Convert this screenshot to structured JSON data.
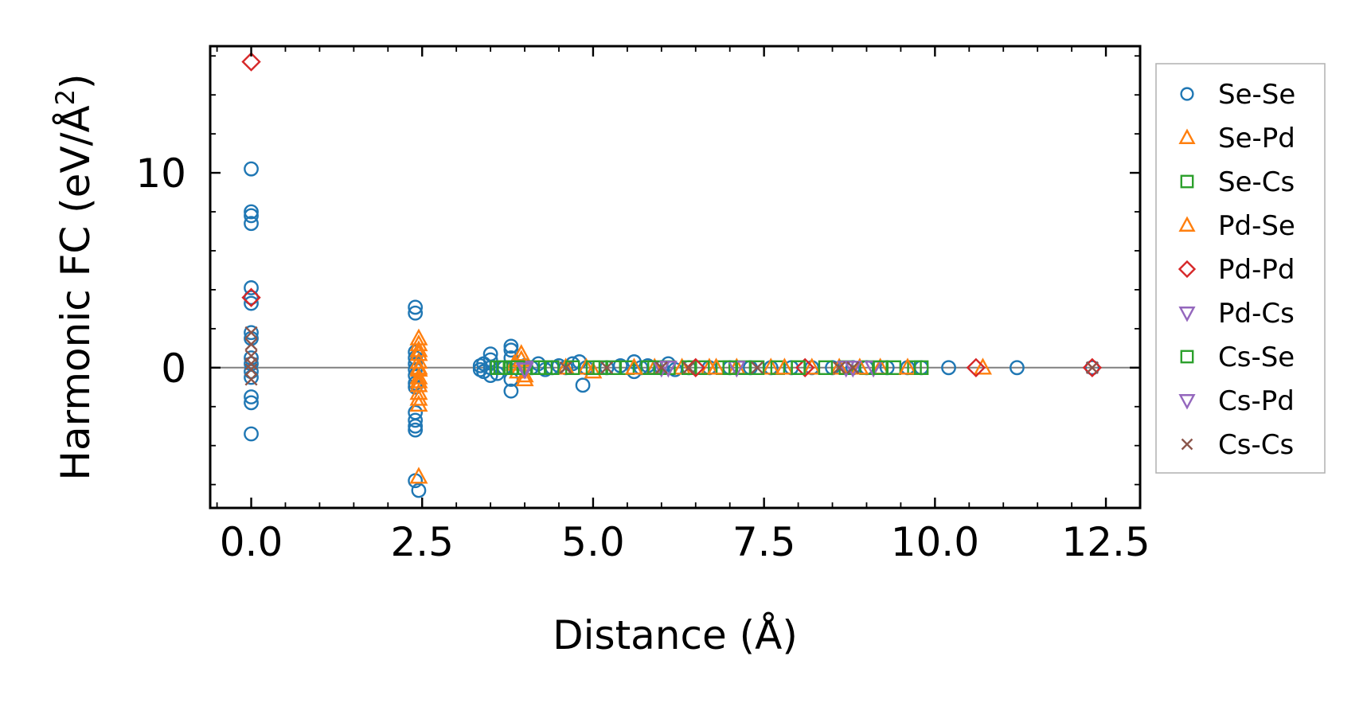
{
  "chart_data": {
    "type": "scatter",
    "xlabel": "Distance (Å)",
    "ylabel_main": "Harmonic FC (eV/Å",
    "ylabel_sup": "2",
    "ylabel_close": ")",
    "xlim": [
      -0.6,
      13.0
    ],
    "ylim": [
      -7.2,
      16.5
    ],
    "xticks": [
      {
        "v": 0.0,
        "label": "0.0"
      },
      {
        "v": 2.5,
        "label": "2.5"
      },
      {
        "v": 5.0,
        "label": "5.0"
      },
      {
        "v": 7.5,
        "label": "7.5"
      },
      {
        "v": 10.0,
        "label": "10.0"
      },
      {
        "v": 12.5,
        "label": "12.5"
      }
    ],
    "yticks": [
      {
        "v": 0,
        "label": "0"
      },
      {
        "v": 10,
        "label": "10"
      }
    ],
    "x_minor_step": 0.5,
    "y_minor_step": 2,
    "zero_line": true,
    "grid": false,
    "legend_position": "right, outside plot",
    "series": [
      {
        "name": "Se-Se",
        "marker": "circle",
        "color": "#1f77b4",
        "points": [
          [
            0,
            10.2
          ],
          [
            0,
            8.0
          ],
          [
            0,
            7.8
          ],
          [
            0,
            7.4
          ],
          [
            0,
            4.1
          ],
          [
            0,
            3.6
          ],
          [
            0,
            3.3
          ],
          [
            0,
            1.8
          ],
          [
            0,
            1.5
          ],
          [
            0,
            0.5
          ],
          [
            0,
            0.2
          ],
          [
            0,
            -0.2
          ],
          [
            0,
            -0.5
          ],
          [
            0,
            -1.5
          ],
          [
            0,
            -1.8
          ],
          [
            0,
            -3.4
          ],
          [
            2.4,
            3.1
          ],
          [
            2.4,
            2.8
          ],
          [
            2.4,
            0.8
          ],
          [
            2.4,
            0.5
          ],
          [
            2.4,
            0.2
          ],
          [
            2.4,
            -0.1
          ],
          [
            2.4,
            -0.4
          ],
          [
            2.4,
            -0.8
          ],
          [
            2.4,
            -1.0
          ],
          [
            2.4,
            -2.3
          ],
          [
            2.4,
            -2.7
          ],
          [
            2.4,
            -3.0
          ],
          [
            2.4,
            -3.2
          ],
          [
            2.4,
            -5.8
          ],
          [
            2.45,
            -6.3
          ],
          [
            3.35,
            0.1
          ],
          [
            3.35,
            -0.1
          ],
          [
            3.4,
            0.2
          ],
          [
            3.4,
            -0.2
          ],
          [
            3.5,
            0.0
          ],
          [
            3.5,
            0.4
          ],
          [
            3.5,
            -0.4
          ],
          [
            3.5,
            0.7
          ],
          [
            3.6,
            -0.3
          ],
          [
            3.7,
            0.0
          ],
          [
            3.8,
            0.9
          ],
          [
            3.8,
            1.1
          ],
          [
            3.8,
            0.5
          ],
          [
            3.8,
            -0.6
          ],
          [
            3.8,
            -1.2
          ],
          [
            4.0,
            0.1
          ],
          [
            4.1,
            0.0
          ],
          [
            4.2,
            0.2
          ],
          [
            4.3,
            -0.1
          ],
          [
            4.4,
            0.0
          ],
          [
            4.5,
            0.1
          ],
          [
            4.6,
            0.0
          ],
          [
            4.7,
            0.2
          ],
          [
            4.8,
            0.3
          ],
          [
            4.85,
            -0.9
          ],
          [
            4.9,
            0.0
          ],
          [
            5.2,
            0.0
          ],
          [
            5.4,
            0.1
          ],
          [
            5.6,
            0.3
          ],
          [
            5.6,
            -0.2
          ],
          [
            5.7,
            0.0
          ],
          [
            5.8,
            0.1
          ],
          [
            6.0,
            0.0
          ],
          [
            6.1,
            0.2
          ],
          [
            6.2,
            -0.1
          ],
          [
            6.4,
            0.0
          ],
          [
            6.7,
            0.0
          ],
          [
            7.0,
            0.0
          ],
          [
            7.3,
            0.0
          ],
          [
            7.6,
            0.0
          ],
          [
            7.9,
            0.0
          ],
          [
            8.2,
            0.0
          ],
          [
            8.5,
            0.0
          ],
          [
            8.8,
            0.0
          ],
          [
            9.0,
            0.0
          ],
          [
            9.3,
            0.0
          ],
          [
            9.6,
            0.0
          ],
          [
            9.8,
            0.0
          ],
          [
            10.2,
            0.0
          ],
          [
            11.2,
            0.0
          ],
          [
            12.3,
            0.0
          ]
        ]
      },
      {
        "name": "Se-Pd",
        "marker": "triangle-up",
        "color": "#ff7f0e",
        "points": [
          [
            2.45,
            1.5
          ],
          [
            2.45,
            1.2
          ],
          [
            2.45,
            0.7
          ],
          [
            2.45,
            0.3
          ],
          [
            2.45,
            -0.1
          ],
          [
            2.45,
            -0.5
          ],
          [
            2.45,
            -0.9
          ],
          [
            2.45,
            -1.3
          ],
          [
            2.45,
            -1.6
          ],
          [
            2.45,
            -1.9
          ],
          [
            2.45,
            -5.6
          ],
          [
            3.85,
            0.2
          ],
          [
            3.9,
            -0.2
          ],
          [
            3.95,
            0.7
          ],
          [
            4.0,
            -0.6
          ],
          [
            4.6,
            0.0
          ],
          [
            4.9,
            0.0
          ],
          [
            5.0,
            -0.2
          ],
          [
            5.9,
            0.0
          ],
          [
            6.3,
            0.0
          ],
          [
            6.7,
            0.0
          ],
          [
            7.1,
            0.0
          ],
          [
            7.6,
            0.0
          ],
          [
            8.2,
            0.0
          ],
          [
            8.6,
            0.0
          ],
          [
            9.2,
            0.0
          ],
          [
            10.7,
            0.0
          ]
        ]
      },
      {
        "name": "Se-Cs",
        "marker": "square",
        "color": "#2ca02c",
        "points": [
          [
            3.6,
            0.0
          ],
          [
            3.7,
            0.0
          ],
          [
            3.8,
            0.0
          ],
          [
            3.9,
            0.0
          ],
          [
            4.0,
            0.0
          ],
          [
            4.2,
            0.0
          ],
          [
            4.4,
            0.0
          ],
          [
            4.7,
            0.0
          ],
          [
            5.0,
            0.0
          ],
          [
            5.3,
            0.0
          ],
          [
            5.5,
            0.0
          ],
          [
            5.8,
            0.0
          ],
          [
            6.1,
            0.0
          ],
          [
            6.4,
            0.0
          ],
          [
            6.6,
            0.0
          ],
          [
            6.9,
            0.0
          ],
          [
            7.2,
            0.0
          ],
          [
            7.4,
            0.0
          ],
          [
            7.7,
            0.0
          ],
          [
            8.0,
            0.0
          ],
          [
            8.4,
            0.0
          ],
          [
            8.7,
            0.0
          ],
          [
            9.0,
            0.0
          ],
          [
            9.4,
            0.0
          ],
          [
            9.7,
            0.0
          ]
        ]
      },
      {
        "name": "Pd-Se",
        "marker": "triangle-up",
        "color": "#ff7f0e",
        "points": [
          [
            2.45,
            0.9
          ],
          [
            2.45,
            0.0
          ],
          [
            2.45,
            -0.7
          ],
          [
            3.95,
            0.4
          ],
          [
            4.0,
            -0.4
          ],
          [
            5.6,
            0.0
          ],
          [
            6.8,
            0.0
          ],
          [
            7.8,
            0.0
          ],
          [
            8.9,
            0.0
          ],
          [
            9.6,
            0.0
          ]
        ]
      },
      {
        "name": "Pd-Pd",
        "marker": "diamond",
        "color": "#d62728",
        "points": [
          [
            0,
            15.7
          ],
          [
            0,
            3.6
          ],
          [
            6.5,
            0.0
          ],
          [
            8.1,
            0.0
          ],
          [
            10.6,
            0.0
          ],
          [
            12.3,
            0.0
          ]
        ]
      },
      {
        "name": "Pd-Cs",
        "marker": "triangle-down",
        "color": "#9467bd",
        "points": [
          [
            4.0,
            0.0
          ],
          [
            6.0,
            0.0
          ],
          [
            7.1,
            0.0
          ],
          [
            8.7,
            0.0
          ],
          [
            9.1,
            0.0
          ]
        ]
      },
      {
        "name": "Cs-Se",
        "marker": "square",
        "color": "#2ca02c",
        "points": [
          [
            3.65,
            0.0
          ],
          [
            3.9,
            0.0
          ],
          [
            4.3,
            0.0
          ],
          [
            5.1,
            0.0
          ],
          [
            5.9,
            0.0
          ],
          [
            7.0,
            0.0
          ],
          [
            8.0,
            0.0
          ],
          [
            9.2,
            0.0
          ],
          [
            9.8,
            0.0
          ]
        ]
      },
      {
        "name": "Cs-Pd",
        "marker": "triangle-down",
        "color": "#9467bd",
        "points": [
          [
            4.0,
            -0.1
          ],
          [
            6.1,
            0.0
          ],
          [
            8.8,
            0.0
          ]
        ]
      },
      {
        "name": "Cs-Cs",
        "marker": "x",
        "color": "#8c564b",
        "points": [
          [
            0,
            1.8
          ],
          [
            0,
            1.2
          ],
          [
            0,
            0.6
          ],
          [
            0,
            0.2
          ],
          [
            0,
            -0.1
          ],
          [
            0,
            -0.6
          ],
          [
            4.6,
            0.0
          ],
          [
            5.2,
            0.0
          ],
          [
            6.0,
            0.0
          ],
          [
            6.4,
            0.0
          ],
          [
            7.4,
            0.0
          ],
          [
            8.6,
            0.0
          ],
          [
            8.8,
            0.0
          ],
          [
            12.3,
            0.0
          ]
        ]
      }
    ]
  }
}
